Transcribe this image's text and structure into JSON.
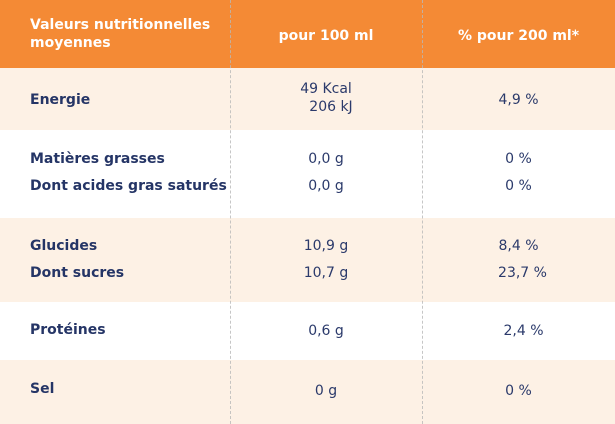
{
  "header": {
    "col1": "Valeurs nutritionnelles moyennes",
    "col2": "pour 100 ml",
    "col3": "% pour 200 ml*"
  },
  "rows": [
    {
      "label": "Energie",
      "val_line1": "49 Kcal",
      "val_line2": "206 kJ",
      "pct": "4,9 %"
    },
    {
      "label": "Matières grasses",
      "val": "0,0 g",
      "pct": "0 %"
    },
    {
      "label": "Dont acides gras saturés",
      "val": "0,0 g",
      "pct": "0 %"
    },
    {
      "label": "Glucides",
      "val": "10,9 g",
      "pct": "8,4 %"
    },
    {
      "label": "Dont sucres",
      "val": "10,7 g",
      "pct": "23,7 %"
    },
    {
      "label": "Protéines",
      "val": "0,6 g",
      "pct": "2,4 %"
    },
    {
      "label": "Sel",
      "val": "0 g",
      "pct": "0 %"
    }
  ],
  "colors": {
    "header": "#f48a35",
    "band": "#fdf1e5",
    "text": "#2b3a6b"
  }
}
